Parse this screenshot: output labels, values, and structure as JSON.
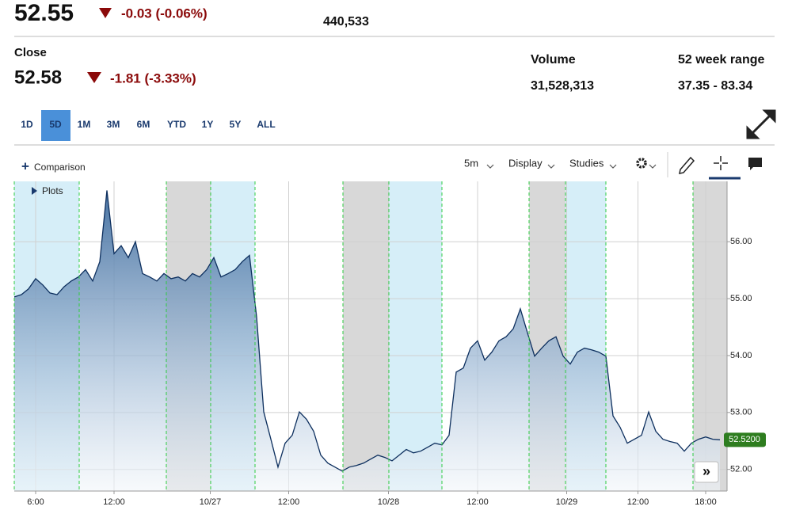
{
  "quote": {
    "last": "52.55",
    "change": "-0.03 (-0.06%)",
    "volume": "440,533"
  },
  "close": {
    "label": "Close",
    "price": "52.58",
    "change": "-1.81 (-3.33%)"
  },
  "stats": [
    {
      "label": "Volume",
      "value": "31,528,313"
    },
    {
      "label": "52 week range",
      "value": "37.35 - 83.34"
    }
  ],
  "ranges": [
    "1D",
    "5D",
    "1M",
    "3M",
    "6M",
    "YTD",
    "1Y",
    "5Y",
    "ALL"
  ],
  "selected_range": "5D",
  "toolbar": {
    "comparison": "Comparison",
    "interval": "5m",
    "display": "Display",
    "studies": "Studies",
    "plots": "Plots"
  },
  "chart_data": {
    "type": "area",
    "color": "#0d2f5e",
    "x": [
      0,
      1,
      2,
      3,
      4,
      5,
      6,
      7,
      8,
      9,
      10,
      11,
      12,
      13,
      14,
      15,
      16,
      17,
      18,
      19,
      20,
      21,
      22,
      23,
      24,
      25,
      26,
      27,
      28,
      29,
      30,
      31,
      32,
      33,
      34,
      35,
      36,
      37,
      38,
      39,
      40,
      41,
      42,
      43,
      44,
      45,
      46,
      47,
      48,
      49,
      50,
      51,
      52,
      53,
      54,
      55,
      56,
      57,
      58,
      59,
      60,
      61,
      62,
      63,
      64,
      65,
      66,
      67,
      68,
      69,
      70,
      71,
      72,
      73,
      74,
      75,
      76,
      77,
      78,
      79,
      80,
      81,
      82,
      83,
      84,
      85,
      86,
      87,
      88,
      89,
      90,
      91,
      92,
      93,
      94,
      95,
      96,
      97,
      98,
      99
    ],
    "values": [
      55.03,
      55.07,
      55.17,
      55.35,
      55.24,
      55.1,
      55.07,
      55.21,
      55.31,
      55.38,
      55.51,
      55.31,
      55.65,
      56.9,
      55.79,
      55.93,
      55.72,
      56.0,
      55.44,
      55.38,
      55.31,
      55.44,
      55.35,
      55.38,
      55.31,
      55.44,
      55.38,
      55.51,
      55.72,
      55.38,
      55.44,
      55.51,
      55.65,
      55.76,
      54.68,
      53.01,
      52.53,
      52.04,
      52.46,
      52.6,
      53.01,
      52.88,
      52.67,
      52.25,
      52.11,
      52.04,
      51.97,
      52.04,
      52.07,
      52.11,
      52.18,
      52.25,
      52.21,
      52.15,
      52.25,
      52.35,
      52.29,
      52.32,
      52.39,
      52.46,
      52.43,
      52.6,
      53.71,
      53.78,
      54.13,
      54.26,
      53.92,
      54.06,
      54.26,
      54.33,
      54.47,
      54.82,
      54.4,
      53.99,
      54.13,
      54.26,
      54.33,
      53.99,
      53.85,
      54.06,
      54.13,
      54.1,
      54.06,
      53.99,
      52.94,
      52.74,
      52.46,
      52.53,
      52.6,
      53.01,
      52.67,
      52.53,
      52.49,
      52.46,
      52.32,
      52.46,
      52.53,
      52.57,
      52.53,
      52.52
    ],
    "xlim": [
      0,
      100
    ],
    "ylim": [
      51.62,
      57.06
    ],
    "yticks": [
      {
        "value": 52,
        "label": "52.00"
      },
      {
        "value": 53,
        "label": "53.00"
      },
      {
        "value": 54,
        "label": "54.00"
      },
      {
        "value": 55,
        "label": "55.00"
      },
      {
        "value": 56,
        "label": "56.00"
      }
    ],
    "xticks": [
      {
        "value": 3,
        "label": "6:00"
      },
      {
        "value": 14,
        "label": "12:00"
      },
      {
        "value": 27.5,
        "label": "10/27"
      },
      {
        "value": 38.5,
        "label": "12:00"
      },
      {
        "value": 52.5,
        "label": "10/28"
      },
      {
        "value": 65,
        "label": "12:00"
      },
      {
        "value": 77.5,
        "label": "10/29"
      },
      {
        "value": 87.5,
        "label": "12:00"
      },
      {
        "value": 97,
        "label": "18:00"
      }
    ],
    "last_price": {
      "value": 52.52,
      "label": "52.5200"
    },
    "grid": true
  }
}
